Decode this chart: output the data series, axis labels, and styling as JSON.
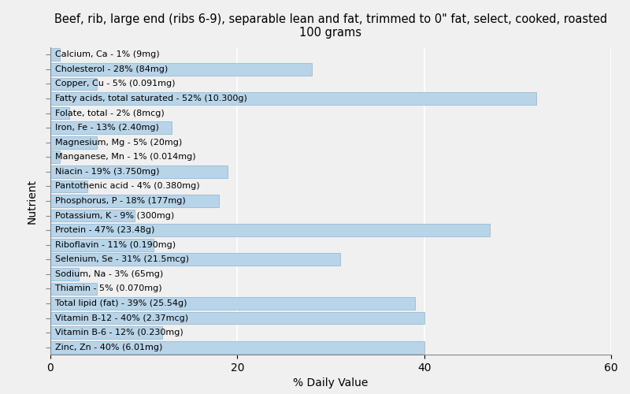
{
  "title": "Beef, rib, large end (ribs 6-9), separable lean and fat, trimmed to 0\" fat, select, cooked, roasted\n100 grams",
  "xlabel": "% Daily Value",
  "ylabel": "Nutrient",
  "background_color": "#f0f0f0",
  "plot_bg_color": "#f0f0f0",
  "bar_color": "#b8d4e8",
  "bar_edge_color": "#8ab4d4",
  "nutrients": [
    {
      "label": "Calcium, Ca - 1% (9mg)",
      "value": 1
    },
    {
      "label": "Cholesterol - 28% (84mg)",
      "value": 28
    },
    {
      "label": "Copper, Cu - 5% (0.091mg)",
      "value": 5
    },
    {
      "label": "Fatty acids, total saturated - 52% (10.300g)",
      "value": 52
    },
    {
      "label": "Folate, total - 2% (8mcg)",
      "value": 2
    },
    {
      "label": "Iron, Fe - 13% (2.40mg)",
      "value": 13
    },
    {
      "label": "Magnesium, Mg - 5% (20mg)",
      "value": 5
    },
    {
      "label": "Manganese, Mn - 1% (0.014mg)",
      "value": 1
    },
    {
      "label": "Niacin - 19% (3.750mg)",
      "value": 19
    },
    {
      "label": "Pantothenic acid - 4% (0.380mg)",
      "value": 4
    },
    {
      "label": "Phosphorus, P - 18% (177mg)",
      "value": 18
    },
    {
      "label": "Potassium, K - 9% (300mg)",
      "value": 9
    },
    {
      "label": "Protein - 47% (23.48g)",
      "value": 47
    },
    {
      "label": "Riboflavin - 11% (0.190mg)",
      "value": 11
    },
    {
      "label": "Selenium, Se - 31% (21.5mcg)",
      "value": 31
    },
    {
      "label": "Sodium, Na - 3% (65mg)",
      "value": 3
    },
    {
      "label": "Thiamin - 5% (0.070mg)",
      "value": 5
    },
    {
      "label": "Total lipid (fat) - 39% (25.54g)",
      "value": 39
    },
    {
      "label": "Vitamin B-12 - 40% (2.37mcg)",
      "value": 40
    },
    {
      "label": "Vitamin B-6 - 12% (0.230mg)",
      "value": 12
    },
    {
      "label": "Zinc, Zn - 40% (6.01mg)",
      "value": 40
    }
  ],
  "xlim": [
    0,
    60
  ],
  "xticks": [
    0,
    20,
    40,
    60
  ],
  "grid_color": "#ffffff",
  "title_fontsize": 10.5,
  "label_fontsize": 8.0,
  "axis_fontsize": 10
}
